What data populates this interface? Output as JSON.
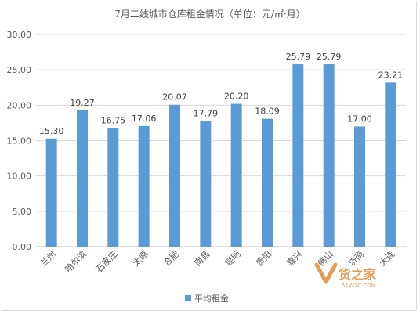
{
  "chart_data": {
    "type": "bar",
    "title": "7月二线城市仓库租金情况（单位：元/㎡·月）",
    "categories": [
      "兰州",
      "哈尔滨",
      "石家庄",
      "太原",
      "合肥",
      "南昌",
      "昆明",
      "贵阳",
      "嘉兴",
      "佛山",
      "济南",
      "大连"
    ],
    "series": [
      {
        "name": "平均租金",
        "values": [
          15.3,
          19.27,
          16.75,
          17.06,
          20.07,
          17.79,
          20.2,
          18.09,
          25.79,
          25.79,
          17.0,
          23.21
        ]
      }
    ],
    "data_labels": [
      "15.30",
      "19.27",
      "16.75",
      "17.06",
      "20.07",
      "17.79",
      "20.20",
      "18.09",
      "25.79",
      "25.79",
      "17.00",
      "23.21"
    ],
    "yticks": [
      "0.00",
      "5.00",
      "10.00",
      "15.00",
      "20.00",
      "25.00",
      "30.00"
    ],
    "ylim": [
      0,
      30
    ],
    "grid": true,
    "legend_position": "bottom",
    "colors": {
      "bar": "#5b9bd5",
      "grid": "#d9d9d9",
      "axis": "#bfbfbf"
    }
  },
  "watermark": {
    "text": "货之家",
    "sub": "51W2C.COM",
    "color": "#e58c3a"
  }
}
